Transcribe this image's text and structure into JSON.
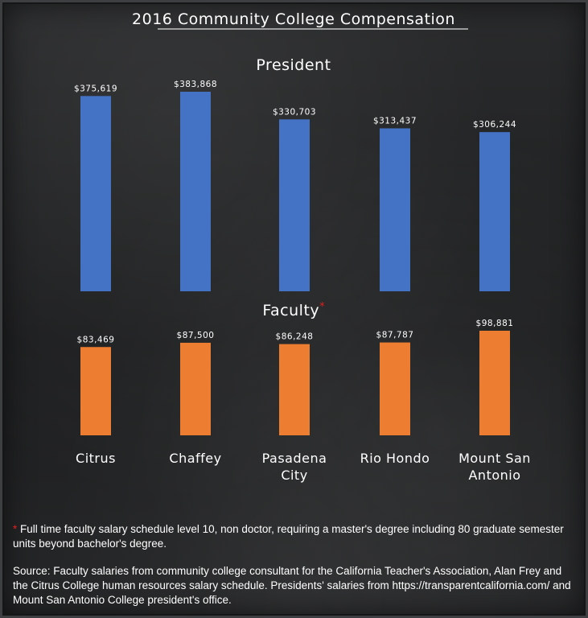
{
  "chart_data": [
    {
      "type": "bar",
      "title": "2016 Community College Compensation",
      "subtitle": "President",
      "categories": [
        "Citrus",
        "Chaffey",
        "Pasadena City",
        "Rio Hondo",
        "Mount San Antonio"
      ],
      "values": [
        375619,
        383868,
        330703,
        313437,
        306244
      ],
      "value_labels": [
        "$375,619",
        "$383,868",
        "$330,703",
        "$313,437",
        "$306,244"
      ],
      "color": "#4472c4"
    },
    {
      "type": "bar",
      "subtitle": "Faculty",
      "subtitle_marker": "*",
      "categories": [
        "Citrus",
        "Chaffey",
        "Pasadena City",
        "Rio Hondo",
        "Mount San Antonio"
      ],
      "values": [
        83469,
        87500,
        86248,
        87787,
        98881
      ],
      "value_labels": [
        "$83,469",
        "$87,500",
        "$86,248",
        "$87,787",
        "$98,881"
      ],
      "color": "#ed7d31"
    }
  ],
  "category_labels": [
    [
      "Citrus"
    ],
    [
      "Chaffey"
    ],
    [
      "Pasadena",
      "City"
    ],
    [
      "Rio Hondo"
    ],
    [
      "Mount San",
      "Antonio"
    ]
  ],
  "notes": {
    "asterisk": "*",
    "footnote": " Full time faculty salary schedule level 10, non doctor, requiring a master's degree including 80 graduate semester units beyond bachelor's degree.",
    "source": "Source: Faculty salaries from community college consultant for the California Teacher's Association, Alan Frey and the Citrus College human resources salary schedule. Presidents' salaries from https://transparentcalifornia.com/ and Mount San Antonio College president's office."
  }
}
